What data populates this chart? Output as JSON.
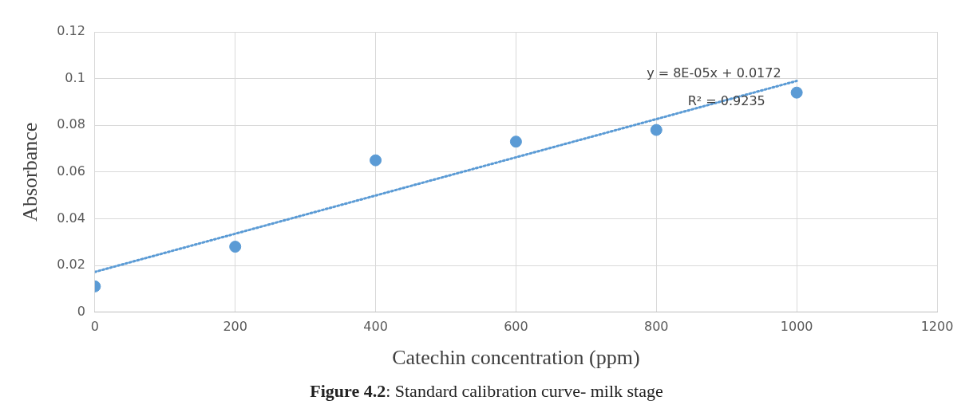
{
  "chart_data": {
    "type": "scatter",
    "title": "Figure 4.2: Standard calibration curve- milk stage",
    "xlabel": "Catechin concentration (ppm)",
    "ylabel": "Absorbance",
    "x": [
      0,
      200,
      400,
      600,
      800,
      1000
    ],
    "series": [
      {
        "color": "#5b9bd5",
        "values": [
          0.011,
          0.028,
          0.065,
          0.073,
          0.078,
          0.094
        ],
        "marker": "circle"
      },
      {
        "type": "line",
        "color": "#5b9bd5",
        "x": [
          0,
          1000
        ],
        "values": [
          0.0172,
          0.099
        ],
        "line_style": "dotted",
        "marker": "none"
      }
    ],
    "xlim": [
      0,
      1200
    ],
    "xticks": [
      0,
      200,
      400,
      600,
      800,
      1000,
      1200
    ],
    "ylim": [
      0,
      0.12
    ],
    "yticks": [
      0,
      0.02,
      0.04,
      0.06,
      0.08,
      0.1,
      0.12
    ],
    "grid": true,
    "legend": false,
    "annotations": [
      "y = 8E-05x + 0.0172",
      "R² = 0.9235"
    ]
  }
}
